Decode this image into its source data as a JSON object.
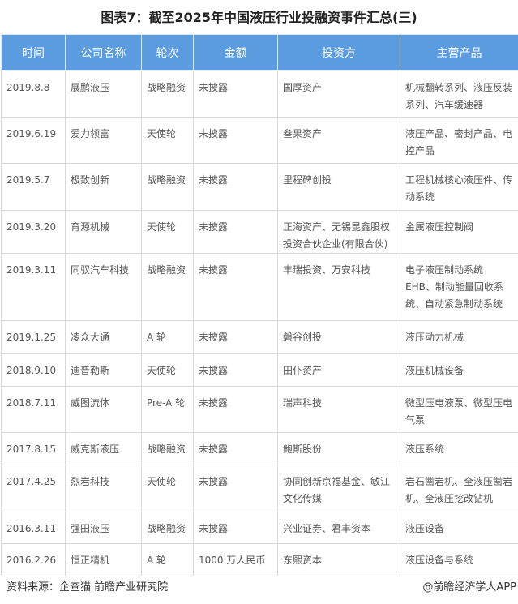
{
  "title": "图表7：截至2025年中国液压行业投融资事件汇总(三)",
  "headers": [
    "时间",
    "公司名称",
    "轮次",
    "金额",
    "投资方",
    "主营产品"
  ],
  "rows": [
    [
      "2019.8.8",
      "展鹏液压",
      "战略融资",
      "未披露",
      "国厚资产",
      "机械翻转系列、液压反装系列、汽车缓速器"
    ],
    [
      "2019.6.19",
      "爱力领富",
      "天使轮",
      "未披露",
      "叁果资产",
      "液压产品、密封产品、电控产品"
    ],
    [
      "2019.5.7",
      "极致创新",
      "战略融资",
      "未披露",
      "里程碑创投",
      "工程机械核心液压件、传动系统"
    ],
    [
      "2019.3.20",
      "育源机械",
      "天使轮",
      "未披露",
      "正海资产、无锡昆鑫股权投资合伙企业(有限合伙)",
      "金属液压控制阀"
    ],
    [
      "2019.3.11",
      "同驭汽车科技",
      "战略融资",
      "未披露",
      "丰瑞投资、万安科技",
      "电子液压制动系统 EHB、制动能量回收系统、自动紧急制动系统"
    ],
    [
      "2019.1.25",
      "凌众大通",
      "A 轮",
      "未披露",
      "磐谷创投",
      "液压动力机械"
    ],
    [
      "2018.9.10",
      "迪普勒斯",
      "天使轮",
      "未披露",
      "田仆资产",
      "液压机械设备"
    ],
    [
      "2018.7.11",
      "威图流体",
      "Pre-A 轮",
      "未披露",
      "瑞声科技",
      "微型压电液泵、微型压电气泵"
    ],
    [
      "2017.8.15",
      "威克斯液压",
      "战略融资",
      "未披露",
      "鲍斯股份",
      "液压系统"
    ],
    [
      "2017.4.25",
      "烈岩科技",
      "天使轮",
      "未披露",
      "协同创新京福基金、敏江文化传媒",
      "岩石凿岩机、全液压凿岩机、全液压挖改钻机"
    ],
    [
      "2016.3.11",
      "强田液压",
      "战略融资",
      "未披露",
      "兴业证券、君丰资本",
      "液压设备"
    ],
    [
      "2016.2.26",
      "恒正精机",
      "A 轮",
      "1000 万人民币",
      "东熙资本",
      "液压设备与系统"
    ]
  ],
  "footer": {
    "source": "资料来源：企查猫 前瞻产业研究院",
    "brand": "@前瞻经济学人APP"
  }
}
